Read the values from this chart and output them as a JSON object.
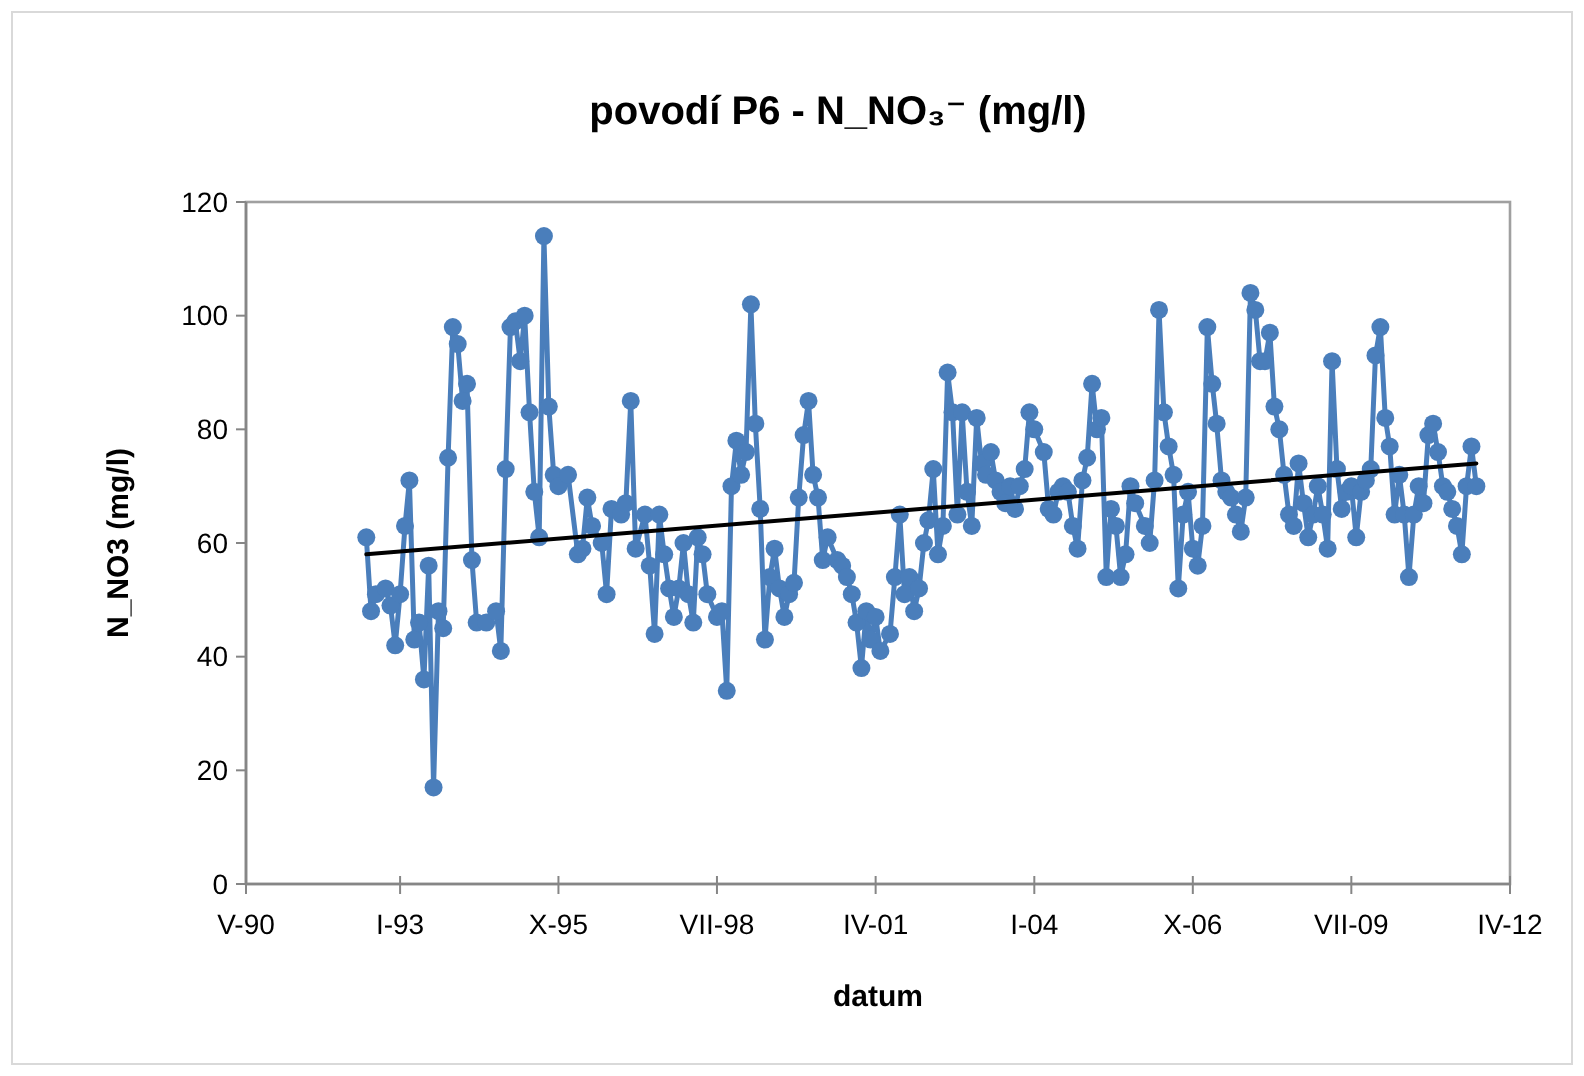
{
  "chart_data": {
    "type": "line",
    "title": "povodí P6 - N_NO₃⁻ (mg/l)",
    "xlabel": "datum",
    "ylabel": "N_NO3 (mg/l)",
    "xlim": [
      "1990-05",
      "2012-04"
    ],
    "xticks": [
      {
        "value": "1990-05",
        "label": "V-90"
      },
      {
        "value": "1993-01",
        "label": "I-93"
      },
      {
        "value": "1995-10",
        "label": "X-95"
      },
      {
        "value": "1998-07",
        "label": "VII-98"
      },
      {
        "value": "2001-04",
        "label": "IV-01"
      },
      {
        "value": "2004-01",
        "label": "I-04"
      },
      {
        "value": "2006-10",
        "label": "X-06"
      },
      {
        "value": "2009-07",
        "label": "VII-09"
      },
      {
        "value": "2012-04",
        "label": "IV-12"
      }
    ],
    "ylim": [
      0,
      120
    ],
    "yticks": [
      0,
      20,
      40,
      60,
      80,
      100,
      120
    ],
    "grid": false,
    "series": [
      {
        "color": "#4a7ebb",
        "marker": "circle",
        "line_style": "solid",
        "x": [
          "1992-06",
          "1992-07",
          "1992-08",
          "1992-10",
          "1992-11",
          "1992-12",
          "1993-01",
          "1993-02",
          "1993-03",
          "1993-04",
          "1993-05",
          "1993-06",
          "1993-07",
          "1993-08",
          "1993-09",
          "1993-10",
          "1993-11",
          "1993-12",
          "1994-01",
          "1994-02",
          "1994-03",
          "1994-04",
          "1994-05",
          "1994-07",
          "1994-09",
          "1994-10",
          "1994-11",
          "1994-12",
          "1995-01",
          "1995-02",
          "1995-03",
          "1995-04",
          "1995-05",
          "1995-06",
          "1995-07",
          "1995-08",
          "1995-09",
          "1995-10",
          "1995-12",
          "1996-02",
          "1996-03",
          "1996-04",
          "1996-05",
          "1996-07",
          "1996-08",
          "1996-09",
          "1996-11",
          "1996-12",
          "1997-01",
          "1997-02",
          "1997-04",
          "1997-05",
          "1997-06",
          "1997-07",
          "1997-08",
          "1997-09",
          "1997-10",
          "1997-11",
          "1997-12",
          "1998-01",
          "1998-02",
          "1998-03",
          "1998-04",
          "1998-05",
          "1998-07",
          "1998-08",
          "1998-09",
          "1998-10",
          "1998-11",
          "1998-12",
          "1999-01",
          "1999-02",
          "1999-03",
          "1999-04",
          "1999-05",
          "1999-06",
          "1999-07",
          "1999-08",
          "1999-09",
          "1999-10",
          "1999-11",
          "1999-12",
          "2000-01",
          "2000-02",
          "2000-03",
          "2000-04",
          "2000-05",
          "2000-06",
          "2000-08",
          "2000-09",
          "2000-10",
          "2000-11",
          "2000-12",
          "2001-01",
          "2001-02",
          "2001-03",
          "2001-04",
          "2001-05",
          "2001-07",
          "2001-08",
          "2001-09",
          "2001-10",
          "2001-11",
          "2001-12",
          "2002-01",
          "2002-02",
          "2002-03",
          "2002-04",
          "2002-05",
          "2002-06",
          "2002-07",
          "2002-08",
          "2002-09",
          "2002-10",
          "2002-11",
          "2002-12",
          "2003-01",
          "2003-02",
          "2003-03",
          "2003-04",
          "2003-05",
          "2003-06",
          "2003-07",
          "2003-08",
          "2003-09",
          "2003-10",
          "2003-11",
          "2003-12",
          "2004-01",
          "2004-03",
          "2004-04",
          "2004-05",
          "2004-06",
          "2004-07",
          "2004-08",
          "2004-09",
          "2004-10",
          "2004-11",
          "2004-12",
          "2005-01",
          "2005-02",
          "2005-03",
          "2005-04",
          "2005-05",
          "2005-06",
          "2005-07",
          "2005-08",
          "2005-09",
          "2005-10",
          "2005-12",
          "2006-01",
          "2006-02",
          "2006-03",
          "2006-04",
          "2006-05",
          "2006-06",
          "2006-07",
          "2006-08",
          "2006-09",
          "2006-10",
          "2006-11",
          "2006-12",
          "2007-01",
          "2007-02",
          "2007-03",
          "2007-04",
          "2007-05",
          "2007-06",
          "2007-07",
          "2007-08",
          "2007-09",
          "2007-10",
          "2007-11",
          "2007-12",
          "2008-01",
          "2008-02",
          "2008-03",
          "2008-04",
          "2008-05",
          "2008-06",
          "2008-07",
          "2008-08",
          "2008-09",
          "2008-10",
          "2008-11",
          "2008-12",
          "2009-01",
          "2009-02",
          "2009-03",
          "2009-04",
          "2009-05",
          "2009-06",
          "2009-07",
          "2009-08",
          "2009-09",
          "2009-10",
          "2009-11",
          "2009-12",
          "2010-01",
          "2010-02",
          "2010-03",
          "2010-04",
          "2010-05",
          "2010-06",
          "2010-07",
          "2010-08",
          "2010-09",
          "2010-10",
          "2010-11",
          "2010-12",
          "2011-01",
          "2011-02",
          "2011-03",
          "2011-04",
          "2011-05",
          "2011-06",
          "2011-07",
          "2011-08",
          "2011-09"
        ],
        "values": [
          61,
          48,
          51,
          52,
          49,
          42,
          51,
          63,
          71,
          43,
          46,
          36,
          56,
          17,
          48,
          45,
          75,
          98,
          95,
          85,
          88,
          57,
          46,
          46,
          48,
          41,
          73,
          98,
          99,
          92,
          100,
          83,
          69,
          61,
          114,
          84,
          72,
          70,
          72,
          58,
          59,
          68,
          63,
          60,
          51,
          66,
          65,
          67,
          85,
          59,
          65,
          56,
          44,
          65,
          58,
          52,
          47,
          52,
          60,
          51,
          46,
          61,
          58,
          51,
          47,
          48,
          34,
          70,
          78,
          72,
          76,
          102,
          81,
          66,
          43,
          54,
          59,
          52,
          47,
          51,
          53,
          68,
          79,
          85,
          72,
          68,
          57,
          61,
          57,
          56,
          54,
          51,
          46,
          38,
          48,
          43,
          47,
          41,
          44,
          54,
          65,
          51,
          54,
          48,
          52,
          60,
          64,
          73,
          58,
          63,
          90,
          83,
          65,
          83,
          69,
          63,
          82,
          74,
          72,
          76,
          71,
          69,
          67,
          70,
          66,
          70,
          73,
          83,
          80,
          76,
          66,
          65,
          69,
          70,
          69,
          63,
          59,
          71,
          75,
          88,
          80,
          82,
          54,
          66,
          63,
          54,
          58,
          70,
          67,
          63,
          60,
          71,
          101,
          83,
          77,
          72,
          52,
          65,
          69,
          59,
          56,
          63,
          98,
          88,
          81,
          71,
          69,
          68,
          65,
          62,
          68,
          104,
          101,
          92,
          92,
          97,
          84,
          80,
          72,
          65,
          63,
          74,
          67,
          61,
          65,
          70,
          65,
          59,
          92,
          73,
          66,
          69,
          70,
          61,
          69,
          71,
          73,
          93,
          98,
          82,
          77,
          65,
          72,
          65,
          54,
          65,
          70,
          67,
          79,
          81,
          76,
          70,
          69,
          66,
          63,
          58,
          70,
          77,
          70
        ]
      },
      {
        "type": "line",
        "color": "#000000",
        "marker": "none",
        "line_style": "solid",
        "x": [
          "1992-06",
          "2011-09"
        ],
        "values": [
          58,
          74
        ]
      }
    ]
  }
}
